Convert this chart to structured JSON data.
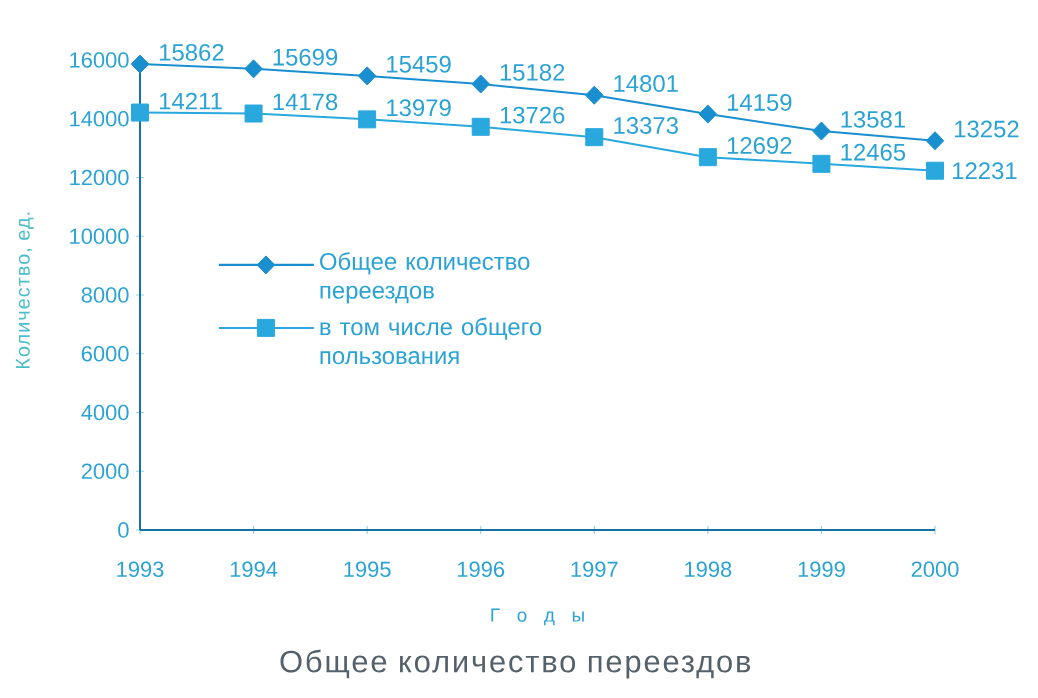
{
  "chart_data": {
    "type": "line",
    "title": "Общее количество переездов",
    "xlabel": "Г о д ы",
    "ylabel": "Количество, ед.",
    "x": [
      1993,
      1994,
      1995,
      1996,
      1997,
      1998,
      1999,
      2000
    ],
    "xlim": [
      1993,
      2000
    ],
    "xticks": [
      1993,
      1994,
      1995,
      1996,
      1997,
      1998,
      1999,
      2000
    ],
    "ylim": [
      0,
      16000
    ],
    "yticks": [
      0,
      2000,
      4000,
      6000,
      8000,
      10000,
      12000,
      14000,
      16000
    ],
    "series": [
      {
        "name": "Общее количество переездов",
        "color": "#1a8fd0",
        "marker": "diamond",
        "values": [
          15862,
          15699,
          15459,
          15182,
          14801,
          14159,
          13581,
          13252
        ]
      },
      {
        "name": "в том числе общего пользования",
        "color": "#29a8de",
        "marker": "square",
        "values": [
          14211,
          14178,
          13979,
          13726,
          13373,
          12692,
          12465,
          12231
        ]
      }
    ],
    "data_labels": true,
    "legend": "left"
  }
}
